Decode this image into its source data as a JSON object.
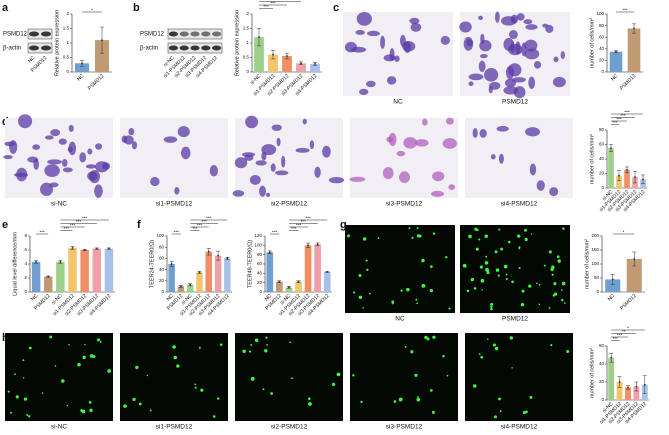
{
  "panel_labels": [
    "a",
    "b",
    "c",
    "d",
    "e",
    "f",
    "g",
    "h"
  ],
  "blots": [
    {
      "bands": [
        "PSMD12",
        "β-actin"
      ],
      "lanes": [
        "NC",
        "PSMD12"
      ]
    },
    {
      "bands": [
        "PSMD12",
        "β-actin"
      ],
      "lanes": [
        "si-NC",
        "si1-PSMD12",
        "si2-PSMD12",
        "si3-PSMD12",
        "si4-PSMD12"
      ]
    }
  ],
  "image_captions": [
    "NC",
    "PSMD12",
    "si-NC",
    "si1-PSMD12",
    "si2-PSMD12",
    "si3-PSMD12",
    "si4-PSMD12",
    "NC",
    "PSMD12",
    "si-NC",
    "si1-PSMD12",
    "si2-PSMD12",
    "si3-PSMD12",
    "si4-PSMD12"
  ],
  "chart_data": [
    {
      "type": "bar",
      "y_label": "Relative protein expression",
      "categories": [
        "NC",
        "PSMD12"
      ],
      "values": [
        0.3,
        1.1
      ],
      "errors": [
        0.1,
        0.45
      ],
      "colors": [
        "#6f9fd0",
        "#c09a72"
      ],
      "ylim": [
        0,
        2
      ],
      "yticks": [
        0,
        0.5,
        1,
        1.5,
        2
      ],
      "significance": [
        "*"
      ]
    },
    {
      "type": "bar",
      "y_label": "Relative protein expression",
      "categories": [
        "si-NC",
        "si1-PSMD12",
        "si2-PSMD12",
        "si3-PSMD12",
        "si4-PSMD12"
      ],
      "values": [
        1.2,
        0.6,
        0.55,
        0.3,
        0.28
      ],
      "errors": [
        0.3,
        0.15,
        0.1,
        0.05,
        0.05
      ],
      "colors": [
        "#9ed08a",
        "#f3c46c",
        "#ef8f63",
        "#ef9fa8",
        "#a9c1ea"
      ],
      "ylim": [
        0,
        2
      ],
      "yticks": [
        0,
        0.5,
        1,
        1.5,
        2
      ],
      "significance": [
        "***",
        "***",
        "**",
        "**"
      ]
    },
    {
      "type": "bar",
      "y_label": "number of cells/mm²",
      "categories": [
        "NC",
        "PSMD12"
      ],
      "values": [
        35,
        75
      ],
      "errors": [
        2,
        8
      ],
      "colors": [
        "#6f9fd0",
        "#c09a72"
      ],
      "ylim": [
        0,
        100
      ],
      "yticks": [
        0,
        20,
        40,
        60,
        80,
        100
      ],
      "significance": [
        "***"
      ]
    },
    {
      "type": "bar",
      "y_label": "number of cells/mm²",
      "categories": [
        "si-NC",
        "si1-PSMD12",
        "si2-PSMD12",
        "si3-PSMD12",
        "si4-PSMD12"
      ],
      "values": [
        55,
        17,
        25,
        15,
        12
      ],
      "errors": [
        5,
        7,
        4,
        8,
        6
      ],
      "colors": [
        "#9ed08a",
        "#f3c46c",
        "#ef8f63",
        "#ef9fa8",
        "#a9c1ea"
      ],
      "ylim": [
        0,
        80
      ],
      "yticks": [
        0,
        20,
        40,
        60,
        80
      ],
      "significance": [
        "***",
        "***",
        "***",
        "***"
      ]
    },
    {
      "type": "bar",
      "y_label": "Liquid level difference/mm",
      "categories": [
        "NC",
        "PSMD12",
        "si-NC",
        "si1-PSMD12",
        "si2-PSMD12",
        "si3-PSMD12",
        "si4-PSMD12"
      ],
      "values": [
        4.3,
        2.2,
        4.3,
        6.3,
        6.0,
        6.2,
        6.2
      ],
      "errors": [
        0.2,
        0.1,
        0.2,
        0.2,
        0.1,
        0.1,
        0.1
      ],
      "colors": [
        "#6f9fd0",
        "#c09a72",
        "#9ed08a",
        "#f3c46c",
        "#ef8f63",
        "#ef9fa8",
        "#a9c1ea"
      ],
      "ylim": [
        0,
        8
      ],
      "yticks": [
        0,
        2,
        4,
        6,
        8
      ],
      "significance": [
        "***",
        "***",
        "***",
        "***",
        "***"
      ]
    },
    {
      "type": "bar",
      "y_label": "TEER24-TEER0(Ω)",
      "categories": [
        "NC",
        "PSMD12",
        "si-NC",
        "si1-PSMD12",
        "si2-PSMD12",
        "si3-PSMD12",
        "si4-PSMD12"
      ],
      "values": [
        50,
        10,
        13,
        35,
        72,
        65,
        60
      ],
      "errors": [
        4,
        2,
        2,
        2,
        6,
        8,
        2
      ],
      "colors": [
        "#6f9fd0",
        "#c09a72",
        "#9ed08a",
        "#f3c46c",
        "#ef8f63",
        "#ef9fa8",
        "#a9c1ea"
      ],
      "ylim": [
        0,
        100
      ],
      "yticks": [
        0,
        20,
        40,
        60,
        80,
        100
      ],
      "significance": [
        "***",
        "***",
        "***",
        "***",
        "***"
      ]
    },
    {
      "type": "bar",
      "y_label": "TEER48-TEER0(Ω)",
      "categories": [
        "NC",
        "PSMD12",
        "si-NC",
        "si1-PSMD12",
        "si2-PSMD12",
        "si3-PSMD12",
        "si4-PSMD12"
      ],
      "values": [
        85,
        22,
        10,
        22,
        100,
        102,
        43
      ],
      "errors": [
        3,
        2,
        2,
        2,
        5,
        3,
        1
      ],
      "colors": [
        "#6f9fd0",
        "#c09a72",
        "#9ed08a",
        "#f3c46c",
        "#ef8f63",
        "#ef9fa8",
        "#a9c1ea"
      ],
      "ylim": [
        0,
        120
      ],
      "yticks": [
        0,
        20,
        40,
        60,
        80,
        100,
        120
      ],
      "significance": [
        "***",
        "***",
        "***",
        "***",
        "***"
      ]
    },
    {
      "type": "bar",
      "y_label": "number of cells/mm²",
      "categories": [
        "NC",
        "PSMD12"
      ],
      "values": [
        45,
        118
      ],
      "errors": [
        18,
        25
      ],
      "colors": [
        "#6f9fd0",
        "#c09a72"
      ],
      "ylim": [
        0,
        200
      ],
      "yticks": [
        0,
        50,
        100,
        150,
        200
      ],
      "significance": [
        "*"
      ]
    },
    {
      "type": "bar",
      "y_label": "number of cells/mm²",
      "categories": [
        "si-NC",
        "si1-PSMD12",
        "si2-PSMD12",
        "si3-PSMD12",
        "si4-PSMD12"
      ],
      "values": [
        47,
        20,
        14,
        15,
        17
      ],
      "errors": [
        5,
        6,
        2,
        5,
        10
      ],
      "colors": [
        "#9ed08a",
        "#f3c46c",
        "#ef8f63",
        "#ef9fa8",
        "#a9c1ea"
      ],
      "ylim": [
        0,
        60
      ],
      "yticks": [
        0,
        20,
        40,
        60
      ],
      "significance": [
        "***",
        "***",
        "**",
        "*"
      ]
    }
  ]
}
